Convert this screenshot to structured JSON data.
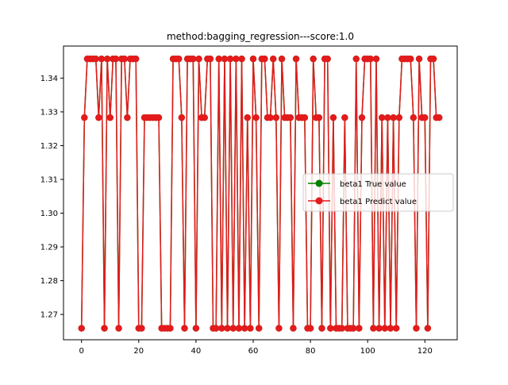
{
  "chart_data": {
    "type": "line",
    "title": "method:bagging_regression---score:1.0",
    "xlabel": "",
    "ylabel": "",
    "xlim": [
      -6.3,
      131.3
    ],
    "ylim": [
      1.2625,
      1.3495
    ],
    "xticks": [
      0,
      20,
      40,
      60,
      80,
      100,
      120
    ],
    "yticks": [
      1.27,
      1.28,
      1.29,
      1.3,
      1.31,
      1.32,
      1.33,
      1.34
    ],
    "ytick_labels": [
      "1.27",
      "1.28",
      "1.29",
      "1.30",
      "1.31",
      "1.32",
      "1.33",
      "1.34"
    ],
    "grid": false,
    "legend_position": "center-right",
    "levels": {
      "low": 1.2659,
      "mid": 1.3283,
      "high": 1.3457
    },
    "series": [
      {
        "name": "beta1 True value",
        "color": "#008000",
        "marker": "circle",
        "values": [
          1.2659,
          1.3283,
          1.3457,
          1.3457,
          1.3457,
          1.3457,
          1.3283,
          1.3457,
          1.2659,
          1.3457,
          1.3283,
          1.3457,
          1.3457,
          1.2659,
          1.3457,
          1.3457,
          1.3283,
          1.3457,
          1.3457,
          1.3457,
          1.2659,
          1.2659,
          1.3283,
          1.3283,
          1.3283,
          1.3283,
          1.3283,
          1.3283,
          1.2659,
          1.2659,
          1.2659,
          1.2659,
          1.3457,
          1.3457,
          1.3457,
          1.3283,
          1.2659,
          1.3457,
          1.3457,
          1.3457,
          1.2659,
          1.3457,
          1.3283,
          1.3283,
          1.3457,
          1.3457,
          1.2659,
          1.2659,
          1.3457,
          1.2659,
          1.3457,
          1.2659,
          1.3457,
          1.2659,
          1.3457,
          1.2659,
          1.3457,
          1.2659,
          1.3283,
          1.2659,
          1.3457,
          1.3283,
          1.2659,
          1.3457,
          1.3457,
          1.3283,
          1.3283,
          1.3457,
          1.3283,
          1.2659,
          1.3457,
          1.3283,
          1.3283,
          1.3283,
          1.2659,
          1.3457,
          1.3283,
          1.3283,
          1.3283,
          1.2659,
          1.2659,
          1.3457,
          1.3283,
          1.3283,
          1.2659,
          1.3457,
          1.3457,
          1.2659,
          1.3283,
          1.2659,
          1.2659,
          1.2659,
          1.3283,
          1.2659,
          1.2659,
          1.2659,
          1.3457,
          1.2659,
          1.3283,
          1.3457,
          1.3457,
          1.3457,
          1.2659,
          1.3457,
          1.2659,
          1.3283,
          1.2659,
          1.3283,
          1.2659,
          1.3283,
          1.2659,
          1.3283,
          1.3457,
          1.3457,
          1.3457,
          1.3457,
          1.3283,
          1.2659,
          1.3457,
          1.3283,
          1.3283,
          1.2659,
          1.3457,
          1.3457,
          1.3283,
          1.3283
        ]
      },
      {
        "name": "beta1 Predict value",
        "color": "#e41a1c",
        "marker": "circle",
        "values": [
          1.2659,
          1.3283,
          1.3457,
          1.3457,
          1.3457,
          1.3457,
          1.3283,
          1.3457,
          1.2659,
          1.3457,
          1.3283,
          1.3457,
          1.3457,
          1.2659,
          1.3457,
          1.3457,
          1.3283,
          1.3457,
          1.3457,
          1.3457,
          1.2659,
          1.2659,
          1.3283,
          1.3283,
          1.3283,
          1.3283,
          1.3283,
          1.3283,
          1.2659,
          1.2659,
          1.2659,
          1.2659,
          1.3457,
          1.3457,
          1.3457,
          1.3283,
          1.2659,
          1.3457,
          1.3457,
          1.3457,
          1.2659,
          1.3457,
          1.3283,
          1.3283,
          1.3457,
          1.3457,
          1.2659,
          1.2659,
          1.3457,
          1.2659,
          1.3457,
          1.2659,
          1.3457,
          1.2659,
          1.3457,
          1.2659,
          1.3457,
          1.2659,
          1.3283,
          1.2659,
          1.3457,
          1.3283,
          1.2659,
          1.3457,
          1.3457,
          1.3283,
          1.3283,
          1.3457,
          1.3283,
          1.2659,
          1.3457,
          1.3283,
          1.3283,
          1.3283,
          1.2659,
          1.3457,
          1.3283,
          1.3283,
          1.3283,
          1.2659,
          1.2659,
          1.3457,
          1.3283,
          1.3283,
          1.2659,
          1.3457,
          1.3457,
          1.2659,
          1.3283,
          1.2659,
          1.2659,
          1.2659,
          1.3283,
          1.2659,
          1.2659,
          1.2659,
          1.3457,
          1.2659,
          1.3283,
          1.3457,
          1.3457,
          1.3457,
          1.2659,
          1.3457,
          1.2659,
          1.3283,
          1.2659,
          1.3283,
          1.2659,
          1.3283,
          1.2659,
          1.3283,
          1.3457,
          1.3457,
          1.3457,
          1.3457,
          1.3283,
          1.2659,
          1.3457,
          1.3283,
          1.3283,
          1.2659,
          1.3457,
          1.3457,
          1.3283,
          1.3283
        ]
      }
    ]
  }
}
